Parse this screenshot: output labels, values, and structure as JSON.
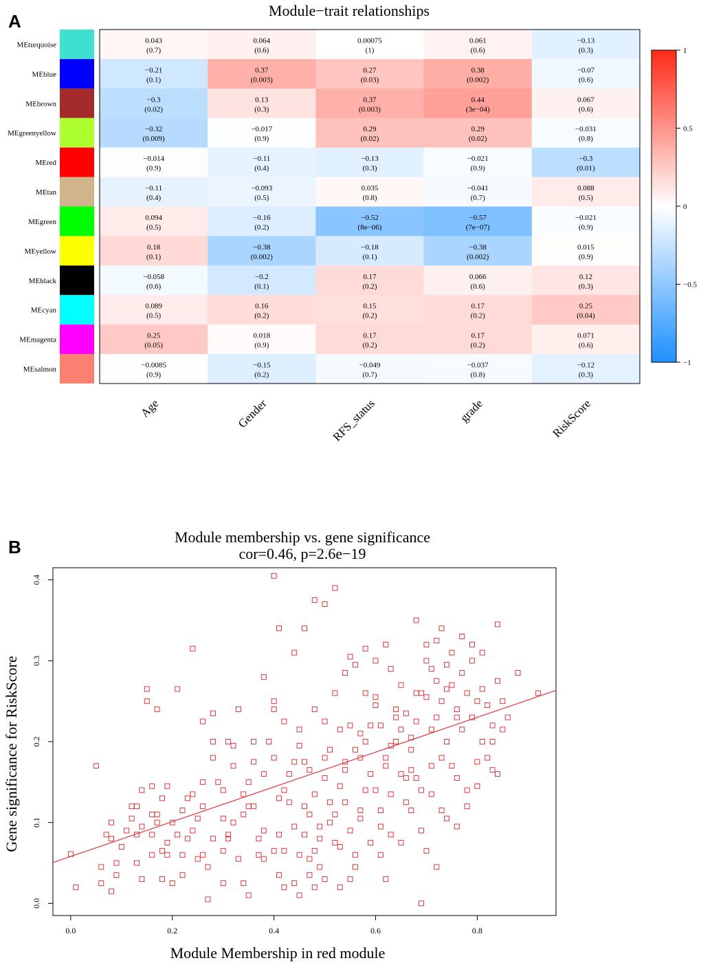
{
  "panel_a": {
    "letter": "A"
  },
  "panel_b": {
    "letter": "B"
  },
  "chart_data": [
    {
      "type": "heatmap",
      "title": "Module−trait relationships",
      "rows": [
        "MEturquoise",
        "MEblue",
        "MEbrown",
        "MEgreenyellow",
        "MEred",
        "MEtan",
        "MEgreen",
        "MEyellow",
        "MEblack",
        "MEcyan",
        "MEmagenta",
        "MEsalmon"
      ],
      "row_colors": [
        "#40e0d0",
        "#0000ff",
        "#a52a2a",
        "#adff2f",
        "#ff0000",
        "#d2b48c",
        "#00ff00",
        "#ffff00",
        "#000000",
        "#00ffff",
        "#ff00ff",
        "#fa8072"
      ],
      "columns": [
        "Age",
        "Gender",
        "RFS_status",
        "grade",
        "RiskScore"
      ],
      "values": [
        [
          0.043,
          0.064,
          0.00075,
          0.061,
          -0.13
        ],
        [
          -0.21,
          0.37,
          0.27,
          0.38,
          -0.07
        ],
        [
          -0.3,
          0.13,
          0.37,
          0.44,
          0.067
        ],
        [
          -0.32,
          -0.017,
          0.29,
          0.29,
          -0.031
        ],
        [
          -0.014,
          -0.11,
          -0.13,
          -0.021,
          -0.3
        ],
        [
          -0.11,
          -0.093,
          0.035,
          -0.041,
          0.088
        ],
        [
          0.094,
          -0.16,
          -0.52,
          -0.57,
          -0.021
        ],
        [
          0.18,
          -0.38,
          -0.18,
          -0.38,
          0.015
        ],
        [
          -0.058,
          -0.2,
          0.17,
          0.066,
          0.12
        ],
        [
          0.089,
          0.16,
          0.15,
          0.17,
          0.25
        ],
        [
          0.25,
          0.018,
          0.17,
          0.17,
          0.071
        ],
        [
          -0.0085,
          -0.15,
          -0.049,
          -0.037,
          -0.12
        ]
      ],
      "cell_values": [
        [
          "0.043",
          "0.064",
          "0.00075",
          "0.061",
          "−0.13"
        ],
        [
          "−0.21",
          "0.37",
          "0.27",
          "0.38",
          "−0.07"
        ],
        [
          "−0.3",
          "0.13",
          "0.37",
          "0.44",
          "0.067"
        ],
        [
          "−0.32",
          "−0.017",
          "0.29",
          "0.29",
          "−0.031"
        ],
        [
          "−0.014",
          "−0.11",
          "−0.13",
          "−0.021",
          "−0.3"
        ],
        [
          "−0.11",
          "−0.093",
          "0.035",
          "−0.041",
          "0.088"
        ],
        [
          "0.094",
          "−0.16",
          "−0.52",
          "−0.57",
          "−0.021"
        ],
        [
          "0.18",
          "−0.38",
          "−0.18",
          "−0.38",
          "0.015"
        ],
        [
          "−0.058",
          "−0.2",
          "0.17",
          "0.066",
          "0.12"
        ],
        [
          "0.089",
          "0.16",
          "0.15",
          "0.17",
          "0.25"
        ],
        [
          "0.25",
          "0.018",
          "0.17",
          "0.17",
          "0.071"
        ],
        [
          "−0.0085",
          "−0.15",
          "−0.049",
          "−0.037",
          "−0.12"
        ]
      ],
      "pvalues": [
        [
          "(0.7)",
          "(0.6)",
          "(1)",
          "(0.6)",
          "(0.3)"
        ],
        [
          "(0.1)",
          "(0.003)",
          "(0.03)",
          "(0.002)",
          "(0.6)"
        ],
        [
          "(0.02)",
          "(0.3)",
          "(0.003)",
          "(3e−04)",
          "(0.6)"
        ],
        [
          "(0.009)",
          "(0.9)",
          "(0.02)",
          "(0.02)",
          "(0.8)"
        ],
        [
          "(0.9)",
          "(0.4)",
          "(0.3)",
          "(0.9)",
          "(0.01)"
        ],
        [
          "(0.4)",
          "(0.5)",
          "(0.8)",
          "(0.7)",
          "(0.5)"
        ],
        [
          "(0.5)",
          "(0.2)",
          "(8e−06)",
          "(7e−07)",
          "(0.9)"
        ],
        [
          "(0.1)",
          "(0.002)",
          "(0.1)",
          "(0.002)",
          "(0.9)"
        ],
        [
          "(0.6)",
          "(0.1)",
          "(0.2)",
          "(0.6)",
          "(0.3)"
        ],
        [
          "(0.5)",
          "(0.2)",
          "(0.2)",
          "(0.2)",
          "(0.04)"
        ],
        [
          "(0.05)",
          "(0.9)",
          "(0.2)",
          "(0.2)",
          "(0.6)"
        ],
        [
          "(0.9)",
          "(0.2)",
          "(0.7)",
          "(0.8)",
          "(0.3)"
        ]
      ],
      "color_scale": {
        "min": -1,
        "max": 1,
        "low": "#1e90ff",
        "mid": "#ffffff",
        "high": "#ff2a16"
      },
      "colorbar_ticks": [
        1,
        0.5,
        0,
        -0.5,
        -1
      ],
      "colorbar_tick_labels": [
        "1",
        "0.5",
        "0",
        "−0.5",
        "−1"
      ]
    },
    {
      "type": "scatter",
      "title": "Module membership vs. gene significance",
      "subtitle": "cor=0.46, p=2.6e−19",
      "xlabel": "Module Membership in red module",
      "ylabel": "Gene significance for RiskScore",
      "xlim": [
        -0.035,
        0.955
      ],
      "ylim": [
        -0.015,
        0.415
      ],
      "xticks": [
        0.0,
        0.2,
        0.4,
        0.6,
        0.8
      ],
      "xtick_labels": [
        "0.0",
        "0.2",
        "0.4",
        "0.6",
        "0.8"
      ],
      "yticks": [
        0.0,
        0.1,
        0.2,
        0.3,
        0.4
      ],
      "ytick_labels": [
        "0.0",
        "0.1",
        "0.2",
        "0.3",
        "0.4"
      ],
      "marker_color": "#e0353a",
      "fit_line": {
        "intercept": 0.058,
        "slope": 0.215
      },
      "points": [
        [
          0.0,
          0.061
        ],
        [
          0.01,
          0.02
        ],
        [
          0.05,
          0.17
        ],
        [
          0.06,
          0.025
        ],
        [
          0.07,
          0.085
        ],
        [
          0.08,
          0.08
        ],
        [
          0.08,
          0.1
        ],
        [
          0.09,
          0.05
        ],
        [
          0.09,
          0.035
        ],
        [
          0.11,
          0.09
        ],
        [
          0.12,
          0.12
        ],
        [
          0.12,
          0.105
        ],
        [
          0.13,
          0.12
        ],
        [
          0.13,
          0.085
        ],
        [
          0.13,
          0.05
        ],
        [
          0.14,
          0.03
        ],
        [
          0.14,
          0.14
        ],
        [
          0.15,
          0.265
        ],
        [
          0.15,
          0.25
        ],
        [
          0.16,
          0.085
        ],
        [
          0.16,
          0.145
        ],
        [
          0.17,
          0.11
        ],
        [
          0.17,
          0.1
        ],
        [
          0.17,
          0.24
        ],
        [
          0.18,
          0.03
        ],
        [
          0.19,
          0.145
        ],
        [
          0.19,
          0.075
        ],
        [
          0.19,
          0.06
        ],
        [
          0.2,
          0.025
        ],
        [
          0.21,
          0.085
        ],
        [
          0.21,
          0.265
        ],
        [
          0.22,
          0.06
        ],
        [
          0.23,
          0.13
        ],
        [
          0.23,
          0.08
        ],
        [
          0.24,
          0.315
        ],
        [
          0.25,
          0.055
        ],
        [
          0.25,
          0.105
        ],
        [
          0.26,
          0.225
        ],
        [
          0.26,
          0.15
        ],
        [
          0.27,
          0.005
        ],
        [
          0.27,
          0.045
        ],
        [
          0.28,
          0.235
        ],
        [
          0.28,
          0.2
        ],
        [
          0.29,
          0.15
        ],
        [
          0.3,
          0.025
        ],
        [
          0.3,
          0.065
        ],
        [
          0.31,
          0.2
        ],
        [
          0.31,
          0.08
        ],
        [
          0.31,
          0.085
        ],
        [
          0.32,
          0.195
        ],
        [
          0.33,
          0.24
        ],
        [
          0.33,
          0.055
        ],
        [
          0.34,
          0.11
        ],
        [
          0.34,
          0.025
        ],
        [
          0.35,
          0.15
        ],
        [
          0.35,
          0.12
        ],
        [
          0.36,
          0.175
        ],
        [
          0.37,
          0.08
        ],
        [
          0.37,
          0.06
        ],
        [
          0.38,
          0.055
        ],
        [
          0.38,
          0.09
        ],
        [
          0.39,
          0.2
        ],
        [
          0.4,
          0.18
        ],
        [
          0.4,
          0.24
        ],
        [
          0.4,
          0.25
        ],
        [
          0.41,
          0.13
        ],
        [
          0.41,
          0.085
        ],
        [
          0.41,
          0.035
        ],
        [
          0.42,
          0.14
        ],
        [
          0.42,
          0.065
        ],
        [
          0.43,
          0.16
        ],
        [
          0.43,
          0.125
        ],
        [
          0.44,
          0.025
        ],
        [
          0.44,
          0.095
        ],
        [
          0.45,
          0.195
        ],
        [
          0.45,
          0.215
        ],
        [
          0.45,
          0.01
        ],
        [
          0.46,
          0.12
        ],
        [
          0.46,
          0.175
        ],
        [
          0.47,
          0.055
        ],
        [
          0.47,
          0.035
        ],
        [
          0.48,
          0.24
        ],
        [
          0.48,
          0.065
        ],
        [
          0.48,
          0.02
        ],
        [
          0.49,
          0.08
        ],
        [
          0.49,
          0.095
        ],
        [
          0.5,
          0.225
        ],
        [
          0.5,
          0.155
        ],
        [
          0.5,
          0.03
        ],
        [
          0.51,
          0.1
        ],
        [
          0.51,
          0.19
        ],
        [
          0.52,
          0.075
        ],
        [
          0.52,
          0.26
        ],
        [
          0.53,
          0.145
        ],
        [
          0.53,
          0.02
        ],
        [
          0.54,
          0.165
        ],
        [
          0.54,
          0.175
        ],
        [
          0.55,
          0.305
        ],
        [
          0.55,
          0.22
        ],
        [
          0.55,
          0.09
        ],
        [
          0.56,
          0.19
        ],
        [
          0.56,
          0.045
        ],
        [
          0.57,
          0.21
        ],
        [
          0.57,
          0.115
        ],
        [
          0.58,
          0.14
        ],
        [
          0.58,
          0.26
        ],
        [
          0.59,
          0.075
        ],
        [
          0.59,
          0.16
        ],
        [
          0.6,
          0.255
        ],
        [
          0.6,
          0.245
        ],
        [
          0.61,
          0.095
        ],
        [
          0.61,
          0.22
        ],
        [
          0.62,
          0.18
        ],
        [
          0.62,
          0.03
        ],
        [
          0.63,
          0.29
        ],
        [
          0.63,
          0.135
        ],
        [
          0.64,
          0.2
        ],
        [
          0.64,
          0.24
        ],
        [
          0.65,
          0.27
        ],
        [
          0.65,
          0.16
        ],
        [
          0.66,
          0.155
        ],
        [
          0.66,
          0.235
        ],
        [
          0.67,
          0.19
        ],
        [
          0.67,
          0.115
        ],
        [
          0.68,
          0.225
        ],
        [
          0.68,
          0.26
        ],
        [
          0.69,
          0.09
        ],
        [
          0.69,
          0.14
        ],
        [
          0.7,
          0.255
        ],
        [
          0.7,
          0.3
        ],
        [
          0.71,
          0.215
        ],
        [
          0.71,
          0.17
        ],
        [
          0.72,
          0.275
        ],
        [
          0.72,
          0.23
        ],
        [
          0.73,
          0.25
        ],
        [
          0.73,
          0.115
        ],
        [
          0.74,
          0.265
        ],
        [
          0.74,
          0.2
        ],
        [
          0.75,
          0.31
        ],
        [
          0.75,
          0.17
        ],
        [
          0.76,
          0.24
        ],
        [
          0.76,
          0.155
        ],
        [
          0.77,
          0.285
        ],
        [
          0.77,
          0.215
        ],
        [
          0.78,
          0.26
        ],
        [
          0.78,
          0.14
        ],
        [
          0.79,
          0.32
        ],
        [
          0.79,
          0.23
        ],
        [
          0.8,
          0.25
        ],
        [
          0.8,
          0.145
        ],
        [
          0.81,
          0.2
        ],
        [
          0.81,
          0.265
        ],
        [
          0.82,
          0.245
        ],
        [
          0.82,
          0.18
        ],
        [
          0.83,
          0.165
        ],
        [
          0.83,
          0.22
        ],
        [
          0.84,
          0.275
        ],
        [
          0.84,
          0.16
        ],
        [
          0.85,
          0.215
        ],
        [
          0.86,
          0.23
        ],
        [
          0.62,
          0.32
        ],
        [
          0.6,
          0.3
        ],
        [
          0.58,
          0.315
        ],
        [
          0.56,
          0.295
        ],
        [
          0.54,
          0.285
        ],
        [
          0.52,
          0.39
        ],
        [
          0.5,
          0.37
        ],
        [
          0.48,
          0.375
        ],
        [
          0.46,
          0.34
        ],
        [
          0.44,
          0.31
        ],
        [
          0.4,
          0.405
        ],
        [
          0.41,
          0.34
        ],
        [
          0.38,
          0.28
        ],
        [
          0.36,
          0.12
        ],
        [
          0.32,
          0.17
        ],
        [
          0.3,
          0.14
        ],
        [
          0.28,
          0.18
        ],
        [
          0.26,
          0.12
        ],
        [
          0.24,
          0.09
        ],
        [
          0.22,
          0.035
        ],
        [
          0.18,
          0.065
        ],
        [
          0.16,
          0.11
        ],
        [
          0.14,
          0.095
        ],
        [
          0.1,
          0.07
        ],
        [
          0.08,
          0.015
        ],
        [
          0.06,
          0.045
        ],
        [
          0.35,
          0.01
        ],
        [
          0.42,
          0.02
        ],
        [
          0.47,
          0.165
        ],
        [
          0.53,
          0.215
        ],
        [
          0.57,
          0.105
        ],
        [
          0.61,
          0.06
        ],
        [
          0.63,
          0.195
        ],
        [
          0.65,
          0.075
        ],
        [
          0.67,
          0.205
        ],
        [
          0.69,
          0.26
        ],
        [
          0.71,
          0.29
        ],
        [
          0.73,
          0.34
        ],
        [
          0.75,
          0.27
        ],
        [
          0.77,
          0.33
        ],
        [
          0.79,
          0.3
        ],
        [
          0.81,
          0.31
        ],
        [
          0.84,
          0.345
        ],
        [
          0.88,
          0.285
        ],
        [
          0.92,
          0.26
        ],
        [
          0.85,
          0.25
        ],
        [
          0.83,
          0.2
        ],
        [
          0.8,
          0.175
        ],
        [
          0.78,
          0.12
        ],
        [
          0.76,
          0.095
        ],
        [
          0.74,
          0.105
        ],
        [
          0.72,
          0.045
        ],
        [
          0.7,
          0.065
        ],
        [
          0.68,
          0.155
        ],
        [
          0.66,
          0.125
        ],
        [
          0.64,
          0.23
        ],
        [
          0.62,
          0.17
        ],
        [
          0.6,
          0.14
        ],
        [
          0.58,
          0.2
        ],
        [
          0.56,
          0.06
        ],
        [
          0.54,
          0.125
        ],
        [
          0.52,
          0.11
        ],
        [
          0.5,
          0.18
        ],
        [
          0.48,
          0.135
        ],
        [
          0.46,
          0.085
        ],
        [
          0.44,
          0.175
        ],
        [
          0.42,
          0.225
        ],
        [
          0.4,
          0.065
        ],
        [
          0.38,
          0.16
        ],
        [
          0.36,
          0.2
        ],
        [
          0.34,
          0.135
        ],
        [
          0.32,
          0.1
        ],
        [
          0.3,
          0.105
        ],
        [
          0.28,
          0.08
        ],
        [
          0.26,
          0.06
        ],
        [
          0.24,
          0.135
        ],
        [
          0.22,
          0.115
        ],
        [
          0.2,
          0.1
        ],
        [
          0.18,
          0.13
        ],
        [
          0.16,
          0.06
        ],
        [
          0.45,
          0.06
        ],
        [
          0.47,
          0.11
        ],
        [
          0.49,
          0.045
        ],
        [
          0.51,
          0.125
        ],
        [
          0.53,
          0.07
        ],
        [
          0.55,
          0.03
        ],
        [
          0.57,
          0.18
        ],
        [
          0.59,
          0.22
        ],
        [
          0.61,
          0.115
        ],
        [
          0.63,
          0.085
        ],
        [
          0.65,
          0.215
        ],
        [
          0.67,
          0.165
        ],
        [
          0.69,
          0.0
        ],
        [
          0.71,
          0.135
        ],
        [
          0.73,
          0.18
        ],
        [
          0.68,
          0.35
        ],
        [
          0.7,
          0.32
        ],
        [
          0.72,
          0.325
        ],
        [
          0.74,
          0.295
        ],
        [
          0.76,
          0.23
        ]
      ]
    }
  ]
}
